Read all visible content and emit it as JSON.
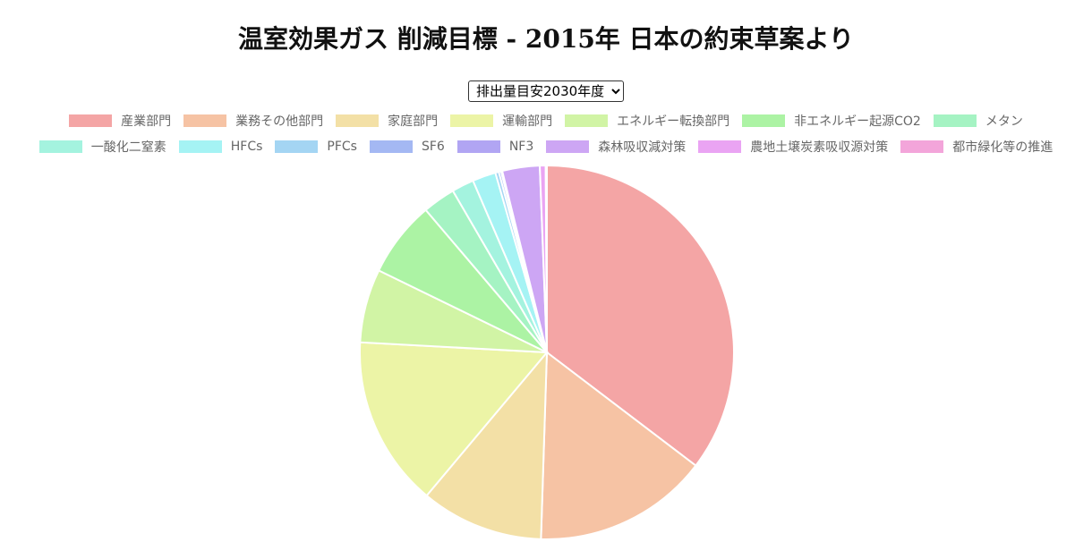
{
  "page": {
    "title": "温室効果ガス 削減目標 - 2015年 日本の約束草案より"
  },
  "selector": {
    "label": "排出量目安2030年度",
    "options": [
      "排出量目安2030年度"
    ]
  },
  "chart_data": {
    "type": "pie",
    "title": "温室効果ガス 削減目標 - 2015年 日本の約束草案より",
    "legend_position": "top",
    "slices": [
      {
        "name": "産業部門",
        "value": 35.0,
        "color": "#f4a5a5"
      },
      {
        "name": "業務その他部門",
        "value": 15.0,
        "color": "#f6c3a4"
      },
      {
        "name": "家庭部門",
        "value": 10.5,
        "color": "#f3e0a6"
      },
      {
        "name": "運輸部門",
        "value": 14.6,
        "color": "#ecf4a6"
      },
      {
        "name": "エネルギー転換部門",
        "value": 6.3,
        "color": "#d1f4a5"
      },
      {
        "name": "非エネルギー起源CO2",
        "value": 6.5,
        "color": "#acf3a4"
      },
      {
        "name": "メタン",
        "value": 2.8,
        "color": "#a5f3c3"
      },
      {
        "name": "一酸化二窒素",
        "value": 1.9,
        "color": "#a4f3df"
      },
      {
        "name": "HFCs",
        "value": 2.0,
        "color": "#a5f3f4"
      },
      {
        "name": "PFCs",
        "value": 0.3,
        "color": "#a4d5f3"
      },
      {
        "name": "SF6",
        "value": 0.2,
        "color": "#a4b8f3"
      },
      {
        "name": "NF3",
        "value": 0.1,
        "color": "#b1a5f3"
      },
      {
        "name": "森林吸収減対策",
        "value": 3.2,
        "color": "#cda6f4"
      },
      {
        "name": "農地土壌炭素吸収源対策",
        "value": 0.5,
        "color": "#eaa4f3"
      },
      {
        "name": "都市緑化等の推進",
        "value": 0.1,
        "color": "#f3a5da"
      }
    ]
  }
}
